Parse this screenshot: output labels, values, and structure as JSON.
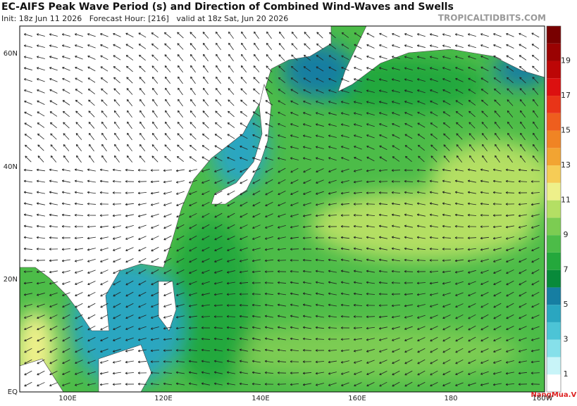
{
  "header": {
    "title": "EC-AIFS Peak Wave Period (s) and Direction of Combined Wind-Waves and Swells",
    "subtitle": "Init: 18z Jun 11 2026   Forecast Hour: [216]   valid at 18z Sat, Jun 20 2026",
    "source": "TROPICALTIDBITS.COM"
  },
  "map": {
    "lat_labels": [
      "60N",
      "40N",
      "20N",
      "EQ"
    ],
    "lon_labels": [
      "100E",
      "120E",
      "140E",
      "160E",
      "180",
      "160W"
    ]
  },
  "colorbar": {
    "lim": [
      0,
      21
    ],
    "ticks": [
      1,
      3,
      5,
      7,
      9,
      11,
      13,
      15,
      17,
      19
    ],
    "colors": [
      "#ffffff",
      "#c8f4f8",
      "#86e0ea",
      "#4cc4d6",
      "#2aa6c0",
      "#167ea2",
      "#088a3a",
      "#24a83c",
      "#4cbc48",
      "#7ccc52",
      "#b4df64",
      "#eef08a",
      "#f6cc56",
      "#f2a432",
      "#f08424",
      "#ee5e1e",
      "#e83418",
      "#dc1010",
      "#bc0606",
      "#9a0202",
      "#780000"
    ]
  },
  "watermark": "NangMua.VN"
}
